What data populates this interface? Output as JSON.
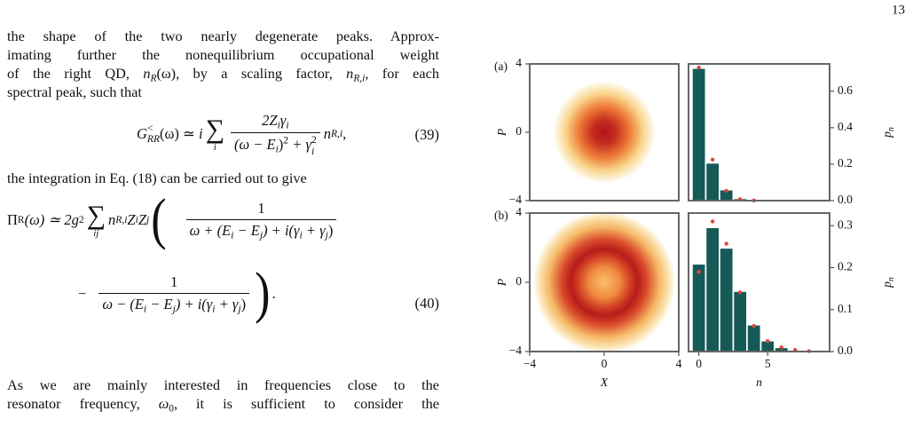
{
  "page_number": "13",
  "body": {
    "p1": [
      "the shape of the two nearly degenerate peaks. Approx-",
      "imating further the nonequilibrium occupational weight",
      [
        "of the right QD, ",
        "n",
        "R",
        "(ω), by a scaling factor, ",
        "n",
        "R,i",
        ", for each"
      ],
      "spectral peak, such that"
    ],
    "eq39": [
      "G",
      "<",
      "RR",
      "(ω) ≃ ",
      "i",
      "∑",
      "i",
      "2Z",
      "i",
      "γ",
      "i",
      "(ω − E",
      "i",
      ")",
      "2",
      " + γ",
      "2",
      "i",
      "n",
      "R,i",
      ",",
      "(39)"
    ],
    "p2": "the integration in Eq. (18) can be carried out to give",
    "eq40": [
      "Π",
      "R",
      "(ω) ≃ 2g",
      "2",
      "∑",
      "ij",
      "n",
      "R,i",
      "Z",
      "i",
      "Z",
      "j",
      "(",
      "1",
      "ω + (E",
      "i",
      " − E",
      "j",
      ") + i(γ",
      "i",
      " + γ",
      "j",
      ")",
      "−",
      "1",
      "ω − (E",
      "i",
      " − E",
      "j",
      ") + i(γ",
      "i",
      " + γ",
      "j",
      ")",
      ")",
      ".",
      "(40)"
    ],
    "p3": [
      "As we are mainly interested in frequencies close to the",
      [
        "resonator frequency, ",
        "ω",
        "0",
        ", it is sufficient to consider the"
      ]
    ]
  },
  "chart_data": [
    {
      "type": "heatmap",
      "panel_label": "(a)",
      "ylabel": "P",
      "xlim": [
        -4,
        4
      ],
      "ylim": [
        -4,
        4
      ],
      "yticks": [
        4,
        0,
        {
          "value": -4,
          "label": "−4"
        }
      ]
    },
    {
      "type": "bar",
      "ylabel": [
        "p",
        "n"
      ],
      "xlim": [
        -0.75,
        9.5
      ],
      "ylim": [
        0,
        0.75
      ],
      "yticks": [
        {
          "value": 0,
          "label": "0.0"
        },
        0.2,
        0.4,
        0.6
      ],
      "x": [
        0,
        1,
        2,
        3,
        4
      ],
      "series": [
        {
          "type": "bar",
          "color": "#165a57",
          "values": [
            0.725,
            0.205,
            0.058,
            0.01,
            0.001
          ]
        },
        {
          "type": "scatter",
          "color": "#e0463c",
          "values": [
            0.73,
            0.225,
            0.054,
            0.008,
            0.001
          ]
        }
      ]
    },
    {
      "type": "heatmap",
      "panel_label": "(b)",
      "ylabel": "P",
      "xlabel": "X",
      "xlim": [
        -4,
        4
      ],
      "ylim": [
        -4,
        4
      ],
      "yticks": [
        4,
        0,
        {
          "value": -4,
          "label": "−4"
        }
      ],
      "xticks": [
        {
          "value": -4,
          "label": "−4"
        },
        0,
        4
      ]
    },
    {
      "type": "bar",
      "ylabel": [
        "p",
        "n"
      ],
      "xlabel": "n",
      "xlim": [
        -0.75,
        9.5
      ],
      "ylim": [
        0,
        0.33
      ],
      "yticks": [
        {
          "value": 0,
          "label": "0.0"
        },
        0.1,
        0.2,
        0.3
      ],
      "xticks": [
        0,
        5
      ],
      "x": [
        0,
        1,
        2,
        3,
        4,
        5,
        6,
        7,
        8
      ],
      "series": [
        {
          "type": "bar",
          "color": "#165a57",
          "values": [
            0.208,
            0.295,
            0.246,
            0.143,
            0.063,
            0.025,
            0.009,
            0.003,
            0.001
          ]
        },
        {
          "type": "scatter",
          "color": "#e0463c",
          "values": [
            0.19,
            0.31,
            0.257,
            0.141,
            0.061,
            0.025,
            0.01,
            0.004,
            0.001
          ]
        }
      ]
    }
  ]
}
